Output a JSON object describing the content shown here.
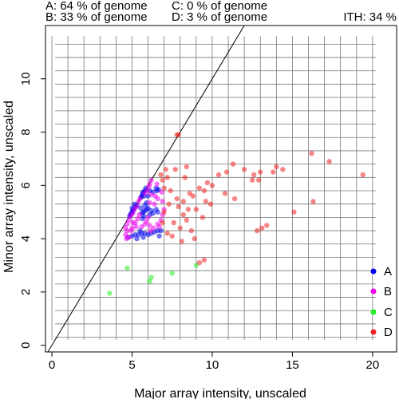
{
  "header": {
    "line1_left": "A: 64 % of genome",
    "line1_right": "C: 0 % of genome",
    "line2_left": "B: 33 % of genome",
    "line2_right": "D: 3 % of genome",
    "ith": "ITH: 34 %"
  },
  "chart_data": {
    "type": "scatter",
    "xlabel": "Major array intensity, unscaled",
    "ylabel": "Minor array intensity, unscaled",
    "xlim": [
      -0.4,
      21.5
    ],
    "ylim": [
      -0.25,
      12.0
    ],
    "x_ticks": [
      0,
      5,
      10,
      15,
      20
    ],
    "y_ticks": [
      0,
      2,
      4,
      6,
      8,
      10
    ],
    "grid": true,
    "diagonal_line": true,
    "legend_position": "right",
    "series": [
      {
        "name": "A",
        "color": "#0000ee",
        "points": [
          [
            4.9,
            4.9
          ],
          [
            4.95,
            4.95
          ],
          [
            5.0,
            5.0
          ],
          [
            5.05,
            5.05
          ],
          [
            5.1,
            5.1
          ],
          [
            5.2,
            5.2
          ],
          [
            4.85,
            4.85
          ],
          [
            5.3,
            5.25
          ],
          [
            5.0,
            5.15
          ],
          [
            5.15,
            5.3
          ],
          [
            5.55,
            5.55
          ],
          [
            5.6,
            5.6
          ],
          [
            5.65,
            5.7
          ],
          [
            5.7,
            5.75
          ],
          [
            5.8,
            5.8
          ],
          [
            5.85,
            5.9
          ],
          [
            5.75,
            5.6
          ],
          [
            6.1,
            5.8
          ],
          [
            6.55,
            5.8
          ],
          [
            6.65,
            5.85
          ],
          [
            6.5,
            5.9
          ],
          [
            6.0,
            5.6
          ],
          [
            6.3,
            5.75
          ],
          [
            4.75,
            4.05
          ],
          [
            5.0,
            4.1
          ],
          [
            5.2,
            4.15
          ],
          [
            5.4,
            4.15
          ],
          [
            5.6,
            4.2
          ],
          [
            5.8,
            4.2
          ],
          [
            6.0,
            4.15
          ],
          [
            6.2,
            4.2
          ],
          [
            6.4,
            4.25
          ],
          [
            6.6,
            4.3
          ],
          [
            6.8,
            4.3
          ],
          [
            5.7,
            4.05
          ],
          [
            5.5,
            4.3
          ],
          [
            5.3,
            4.0
          ],
          [
            6.7,
            4.1
          ],
          [
            5.6,
            4.95
          ],
          [
            5.7,
            5.0
          ],
          [
            5.8,
            5.05
          ],
          [
            5.9,
            5.1
          ],
          [
            6.0,
            5.15
          ],
          [
            6.2,
            5.05
          ],
          [
            6.5,
            5.1
          ],
          [
            5.75,
            4.85
          ],
          [
            6.1,
            4.9
          ],
          [
            5.8,
            5.25
          ],
          [
            5.55,
            5.15
          ],
          [
            6.3,
            4.95
          ],
          [
            5.65,
            4.75
          ],
          [
            5.9,
            5.35
          ],
          [
            6.6,
            5.0
          ]
        ]
      },
      {
        "name": "B",
        "color": "#ee00ee",
        "points": [
          [
            6.2,
            6.2
          ],
          [
            6.1,
            6.05
          ],
          [
            6.05,
            5.95
          ],
          [
            5.95,
            5.8
          ],
          [
            5.8,
            5.7
          ],
          [
            5.5,
            5.5
          ],
          [
            5.4,
            5.4
          ],
          [
            5.3,
            5.2
          ],
          [
            5.15,
            5.1
          ],
          [
            5.05,
            4.95
          ],
          [
            4.9,
            4.85
          ],
          [
            4.8,
            4.7
          ],
          [
            4.7,
            4.55
          ],
          [
            4.6,
            4.4
          ],
          [
            4.7,
            4.3
          ],
          [
            4.6,
            4.15
          ],
          [
            4.8,
            4.05
          ],
          [
            4.65,
            4.0
          ],
          [
            5.0,
            4.4
          ],
          [
            5.2,
            4.6
          ],
          [
            5.35,
            4.75
          ],
          [
            5.6,
            4.45
          ],
          [
            5.8,
            4.55
          ],
          [
            6.1,
            4.5
          ],
          [
            6.35,
            4.4
          ],
          [
            6.6,
            4.55
          ],
          [
            6.8,
            4.7
          ],
          [
            6.9,
            4.9
          ],
          [
            7.0,
            5.1
          ],
          [
            6.9,
            5.4
          ],
          [
            6.6,
            5.5
          ],
          [
            6.4,
            5.3
          ],
          [
            6.1,
            5.35
          ],
          [
            6.2,
            5.65
          ],
          [
            6.45,
            5.6
          ],
          [
            6.85,
            5.75
          ],
          [
            5.9,
            4.65
          ],
          [
            5.45,
            4.9
          ],
          [
            5.25,
            4.45
          ],
          [
            6.0,
            4.8
          ],
          [
            6.7,
            4.45
          ],
          [
            5.05,
            4.6
          ],
          [
            4.95,
            4.3
          ],
          [
            6.55,
            6.05
          ],
          [
            6.15,
            4.3
          ]
        ]
      },
      {
        "name": "C",
        "color": "#22ee22",
        "points": [
          [
            3.6,
            1.95
          ],
          [
            4.7,
            2.9
          ],
          [
            6.2,
            2.55
          ],
          [
            6.1,
            2.4
          ],
          [
            7.5,
            2.7
          ],
          [
            9.0,
            3.0
          ]
        ]
      },
      {
        "name": "D",
        "color": "#ee2222",
        "points": [
          [
            7.8,
            7.9
          ],
          [
            7.9,
            7.9
          ],
          [
            8.4,
            6.7
          ],
          [
            8.3,
            6.3
          ],
          [
            7.7,
            6.6
          ],
          [
            7.1,
            6.6
          ],
          [
            6.8,
            6.4
          ],
          [
            6.9,
            6.2
          ],
          [
            7.2,
            6.3
          ],
          [
            7.0,
            5.9
          ],
          [
            7.4,
            5.8
          ],
          [
            7.8,
            5.5
          ],
          [
            8.2,
            5.4
          ],
          [
            8.6,
            5.7
          ],
          [
            8.8,
            5.6
          ],
          [
            9.2,
            5.9
          ],
          [
            9.5,
            5.8
          ],
          [
            9.7,
            6.1
          ],
          [
            10.0,
            6.0
          ],
          [
            10.4,
            6.4
          ],
          [
            10.9,
            6.5
          ],
          [
            11.3,
            6.8
          ],
          [
            12.0,
            6.6
          ],
          [
            12.5,
            6.2
          ],
          [
            12.6,
            6.4
          ],
          [
            12.9,
            6.2
          ],
          [
            13.0,
            6.5
          ],
          [
            13.8,
            6.5
          ],
          [
            14.0,
            6.7
          ],
          [
            14.4,
            6.6
          ],
          [
            16.2,
            7.2
          ],
          [
            17.3,
            6.9
          ],
          [
            19.4,
            6.4
          ],
          [
            16.3,
            5.4
          ],
          [
            15.1,
            5.0
          ],
          [
            13.4,
            4.5
          ],
          [
            13.1,
            4.4
          ],
          [
            12.8,
            4.3
          ],
          [
            9.9,
            5.3
          ],
          [
            9.4,
            4.8
          ],
          [
            8.5,
            5.1
          ],
          [
            8.2,
            4.9
          ],
          [
            7.6,
            4.6
          ],
          [
            7.2,
            4.2
          ],
          [
            7.5,
            4.1
          ],
          [
            8.7,
            4.3
          ],
          [
            9.0,
            5.1
          ],
          [
            7.9,
            5.2
          ],
          [
            8.1,
            3.9
          ],
          [
            9.2,
            3.1
          ],
          [
            9.5,
            3.2
          ],
          [
            10.8,
            5.7
          ],
          [
            11.4,
            5.5
          ],
          [
            8.9,
            4.0
          ],
          [
            7.3,
            5.3
          ],
          [
            7.0,
            5.0
          ],
          [
            6.9,
            4.6
          ],
          [
            8.0,
            4.4
          ],
          [
            8.4,
            4.7
          ],
          [
            9.6,
            5.4
          ]
        ]
      }
    ]
  }
}
